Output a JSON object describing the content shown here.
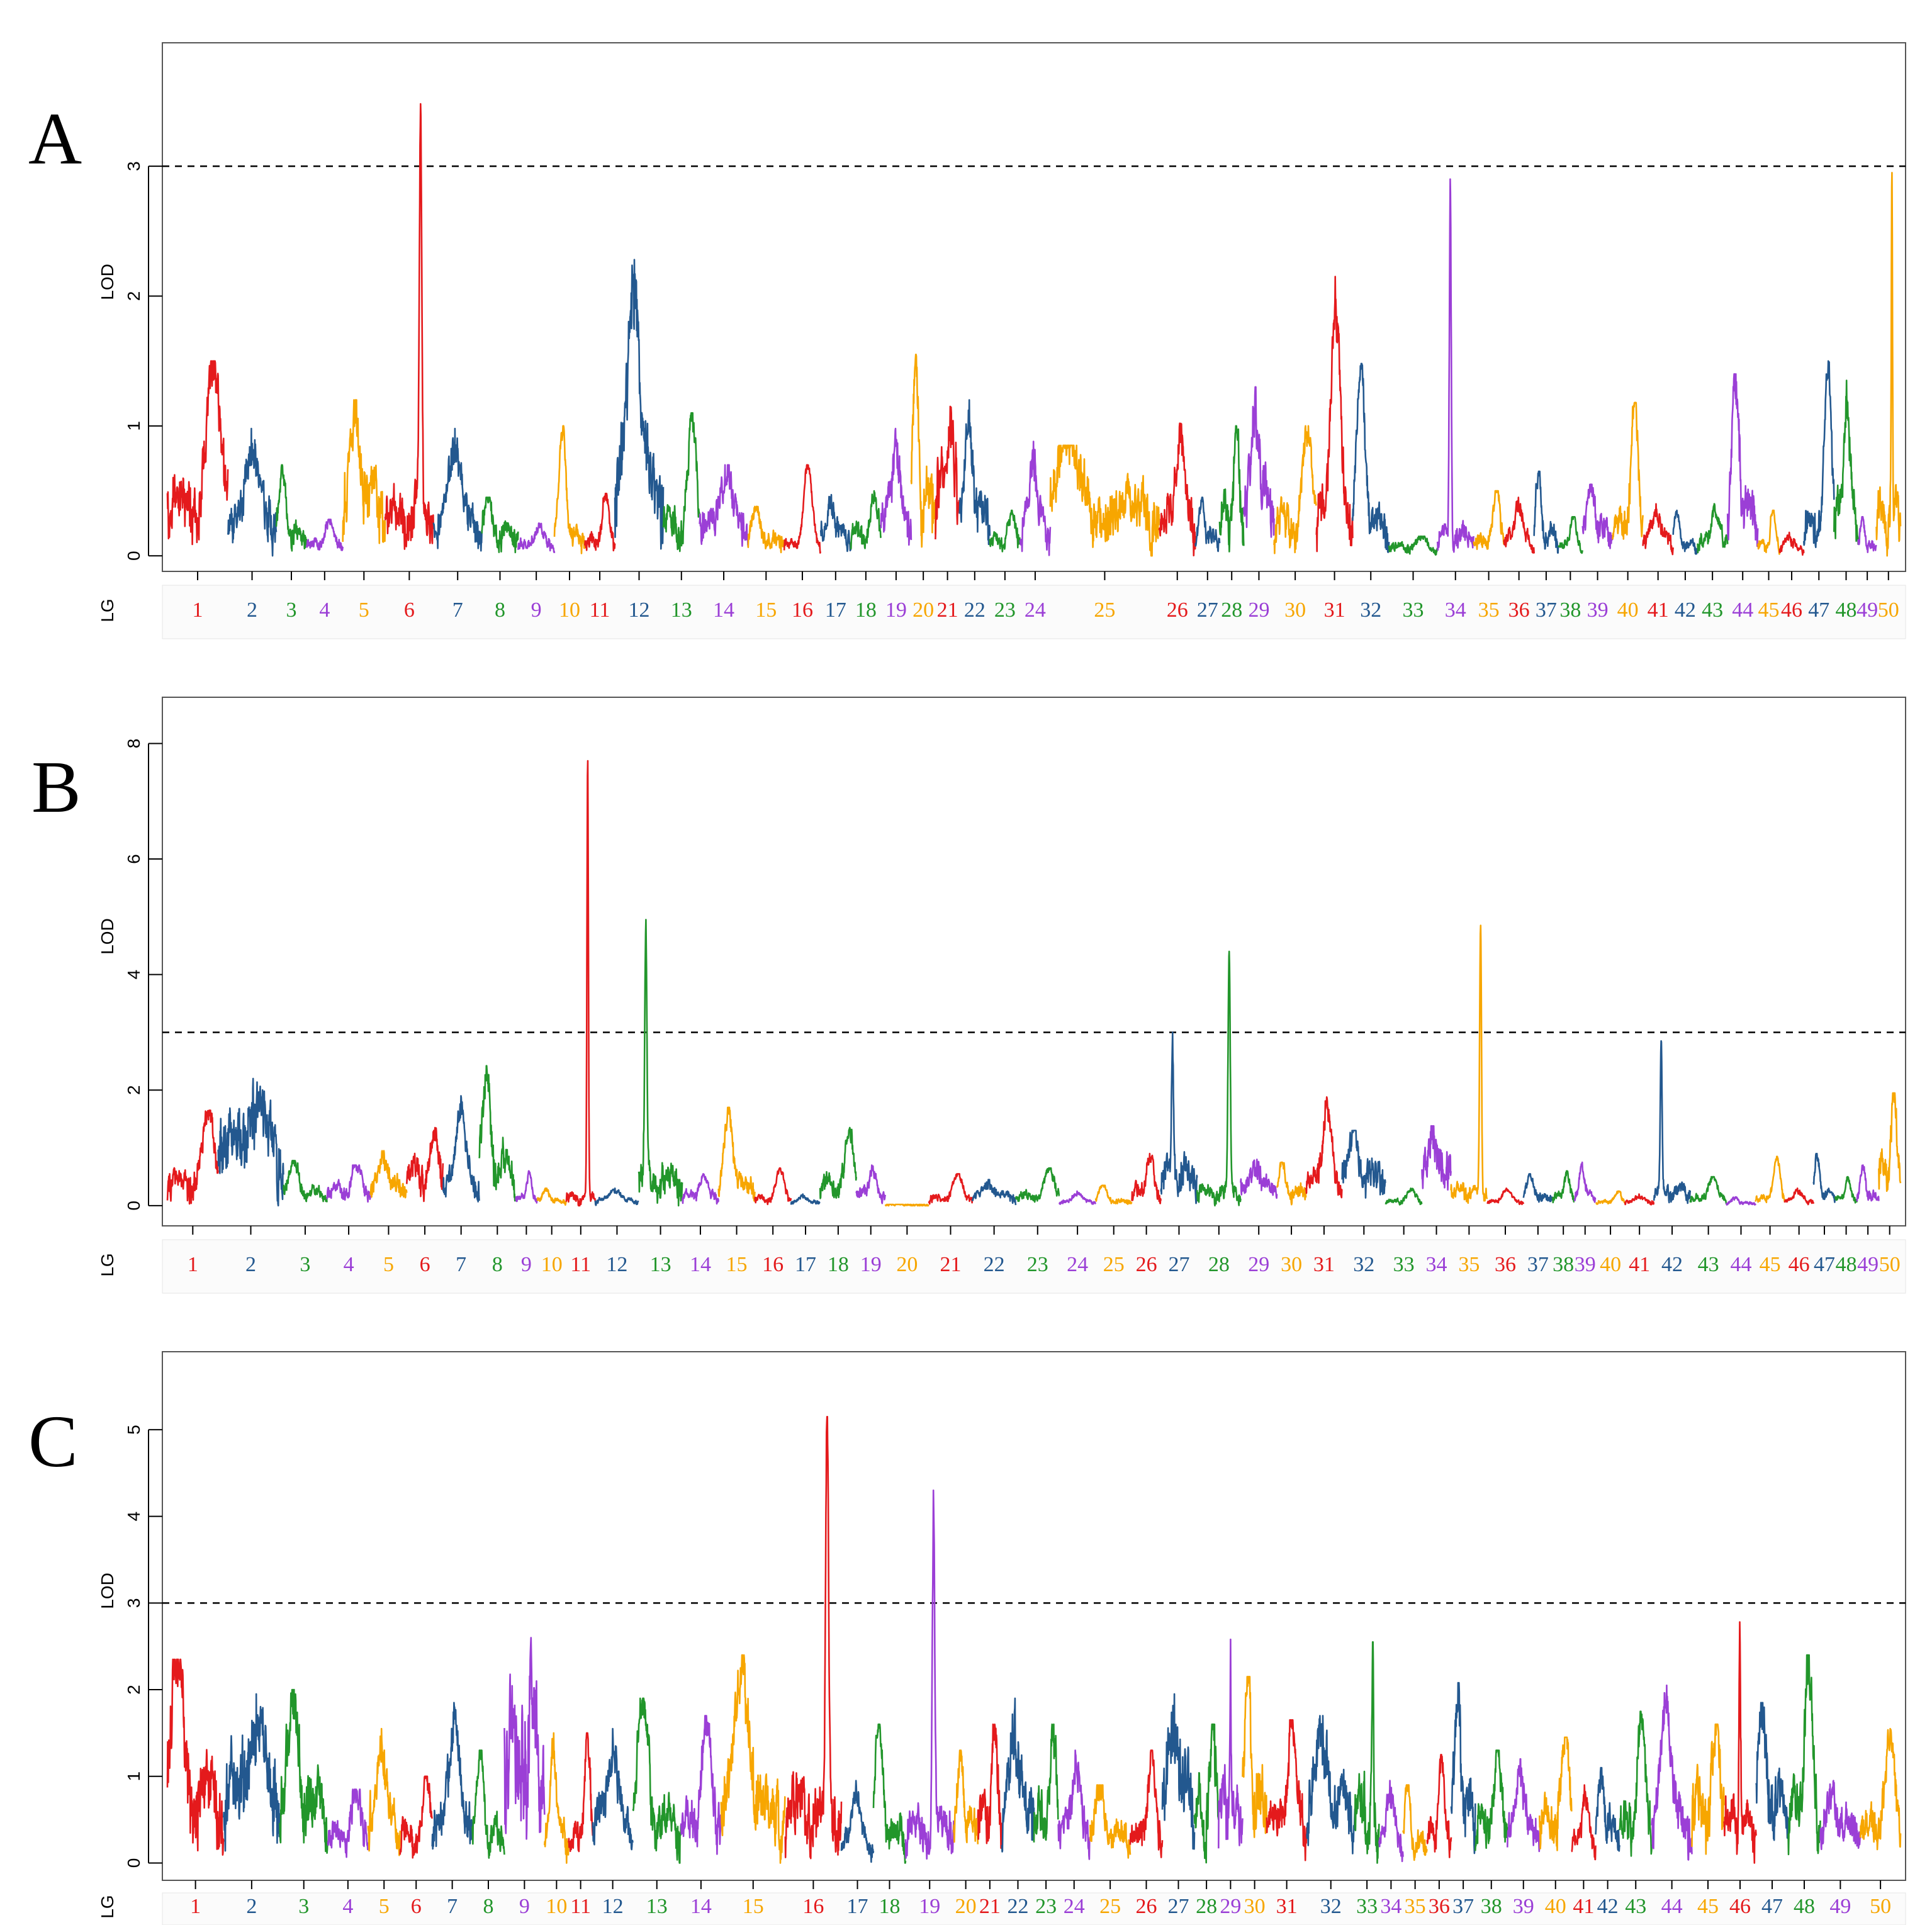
{
  "colors": [
    "#e41a1c",
    "#23588f",
    "#22962b",
    "#9b3fd6",
    "#f7a600"
  ],
  "chart_data": [
    {
      "type": "line",
      "panel": "A",
      "ylabel": "LOD",
      "xlabel": "LG",
      "ylim": [
        -0.12,
        3.95
      ],
      "yticks": [
        0,
        1,
        2,
        3
      ],
      "threshold": 3,
      "lgs": [
        {
          "lg": "1",
          "len": 5,
          "peak": 1.5,
          "base": 0.5
        },
        {
          "lg": "2",
          "len": 4,
          "peak": 0.98,
          "base": 0.35
        },
        {
          "lg": "3",
          "len": 2.5,
          "peak": 0.7,
          "base": 0.2
        },
        {
          "lg": "4",
          "len": 3,
          "peak": 0.28,
          "base": 0.1
        },
        {
          "lg": "5",
          "len": 3.5,
          "peak": 1.2,
          "base": 0.5
        },
        {
          "lg": "6",
          "len": 4,
          "peak": 3.48,
          "base": 0.4
        },
        {
          "lg": "7",
          "len": 4,
          "peak": 0.98,
          "base": 0.3
        },
        {
          "lg": "8",
          "len": 3,
          "peak": 0.45,
          "base": 0.2
        },
        {
          "lg": "9",
          "len": 3,
          "peak": 0.25,
          "base": 0.1
        },
        {
          "lg": "10",
          "len": 2.5,
          "peak": 1.0,
          "base": 0.2
        },
        {
          "lg": "11",
          "len": 2.5,
          "peak": 0.48,
          "base": 0.15
        },
        {
          "lg": "12",
          "len": 4,
          "peak": 2.28,
          "base": 0.7
        },
        {
          "lg": "13",
          "len": 3,
          "peak": 1.1,
          "base": 0.3
        },
        {
          "lg": "14",
          "len": 4,
          "peak": 0.7,
          "base": 0.3
        },
        {
          "lg": "15",
          "len": 3,
          "peak": 0.38,
          "base": 0.15
        },
        {
          "lg": "16",
          "len": 3,
          "peak": 0.7,
          "base": 0.1
        },
        {
          "lg": "17",
          "len": 2.5,
          "peak": 0.47,
          "base": 0.2
        },
        {
          "lg": "18",
          "len": 2.5,
          "peak": 0.5,
          "base": 0.2
        },
        {
          "lg": "19",
          "len": 2.5,
          "peak": 0.98,
          "base": 0.35
        },
        {
          "lg": "20",
          "len": 2,
          "peak": 1.55,
          "base": 0.5
        },
        {
          "lg": "21",
          "len": 2,
          "peak": 1.15,
          "base": 0.6
        },
        {
          "lg": "22",
          "len": 2.5,
          "peak": 1.2,
          "base": 0.4
        },
        {
          "lg": "23",
          "len": 2.5,
          "peak": 0.35,
          "base": 0.15
        },
        {
          "lg": "24",
          "len": 2.5,
          "peak": 0.88,
          "base": 0.3
        },
        {
          "lg": "25",
          "len": 9,
          "peak": 0.85,
          "base": 0.45
        },
        {
          "lg": "26",
          "len": 3,
          "peak": 1.02,
          "base": 0.35
        },
        {
          "lg": "27",
          "len": 2,
          "peak": 0.45,
          "base": 0.15
        },
        {
          "lg": "28",
          "len": 2,
          "peak": 1.0,
          "base": 0.4
        },
        {
          "lg": "29",
          "len": 2.5,
          "peak": 1.3,
          "base": 0.5
        },
        {
          "lg": "30",
          "len": 3.5,
          "peak": 1.0,
          "base": 0.3
        },
        {
          "lg": "31",
          "len": 3,
          "peak": 2.15,
          "base": 0.45
        },
        {
          "lg": "32",
          "len": 3,
          "peak": 1.48,
          "base": 0.3
        },
        {
          "lg": "33",
          "len": 4,
          "peak": 0.15,
          "base": 0.08
        },
        {
          "lg": "34",
          "len": 3,
          "peak": 2.9,
          "base": 0.2
        },
        {
          "lg": "35",
          "len": 2.5,
          "peak": 0.5,
          "base": 0.15
        },
        {
          "lg": "36",
          "len": 2.5,
          "peak": 0.45,
          "base": 0.15
        },
        {
          "lg": "37",
          "len": 2,
          "peak": 0.65,
          "base": 0.2
        },
        {
          "lg": "38",
          "len": 2,
          "peak": 0.3,
          "base": 0.1
        },
        {
          "lg": "39",
          "len": 2.5,
          "peak": 0.55,
          "base": 0.25
        },
        {
          "lg": "40",
          "len": 2.5,
          "peak": 1.18,
          "base": 0.3
        },
        {
          "lg": "41",
          "len": 2.5,
          "peak": 0.4,
          "base": 0.15
        },
        {
          "lg": "42",
          "len": 2,
          "peak": 0.35,
          "base": 0.1
        },
        {
          "lg": "43",
          "len": 2.5,
          "peak": 0.4,
          "base": 0.15
        },
        {
          "lg": "44",
          "len": 2.5,
          "peak": 1.4,
          "base": 0.4
        },
        {
          "lg": "45",
          "len": 1.8,
          "peak": 0.35,
          "base": 0.1
        },
        {
          "lg": "46",
          "len": 2,
          "peak": 0.18,
          "base": 0.08
        },
        {
          "lg": "47",
          "len": 2.5,
          "peak": 1.5,
          "base": 0.3
        },
        {
          "lg": "48",
          "len": 2,
          "peak": 1.35,
          "base": 0.4
        },
        {
          "lg": "49",
          "len": 1.5,
          "peak": 0.3,
          "base": 0.1
        },
        {
          "lg": "50",
          "len": 2,
          "peak": 2.95,
          "base": 0.4
        }
      ]
    },
    {
      "type": "line",
      "panel": "B",
      "ylabel": "LOD",
      "xlabel": "LG",
      "ylim": [
        -0.35,
        8.8
      ],
      "yticks": [
        0,
        2,
        4,
        6,
        8
      ],
      "threshold": 3,
      "lgs": [
        {
          "lg": "1",
          "len": 3.5,
          "peak": 1.65,
          "base": 0.5
        },
        {
          "lg": "2",
          "len": 4.5,
          "peak": 2.2,
          "base": 1.3
        },
        {
          "lg": "3",
          "len": 3,
          "peak": 0.78,
          "base": 0.25
        },
        {
          "lg": "4",
          "len": 3,
          "peak": 0.7,
          "base": 0.3
        },
        {
          "lg": "5",
          "len": 2.5,
          "peak": 0.95,
          "base": 0.4
        },
        {
          "lg": "6",
          "len": 2.5,
          "peak": 1.35,
          "base": 0.7
        },
        {
          "lg": "7",
          "len": 2.5,
          "peak": 1.9,
          "base": 0.5
        },
        {
          "lg": "8",
          "len": 2.5,
          "peak": 2.42,
          "base": 0.8
        },
        {
          "lg": "9",
          "len": 1.5,
          "peak": 0.6,
          "base": 0.15
        },
        {
          "lg": "10",
          "len": 2,
          "peak": 0.3,
          "base": 0.1
        },
        {
          "lg": "11",
          "len": 2,
          "peak": 7.7,
          "base": 0.2
        },
        {
          "lg": "12",
          "len": 3,
          "peak": 0.3,
          "base": 0.1
        },
        {
          "lg": "13",
          "len": 3,
          "peak": 4.95,
          "base": 0.6
        },
        {
          "lg": "14",
          "len": 2.5,
          "peak": 0.55,
          "base": 0.2
        },
        {
          "lg": "15",
          "len": 2.5,
          "peak": 1.7,
          "base": 0.4
        },
        {
          "lg": "16",
          "len": 2.5,
          "peak": 0.65,
          "base": 0.15
        },
        {
          "lg": "17",
          "len": 2,
          "peak": 0.2,
          "base": 0.08
        },
        {
          "lg": "18",
          "len": 2.5,
          "peak": 1.35,
          "base": 0.4
        },
        {
          "lg": "19",
          "len": 2,
          "peak": 0.7,
          "base": 0.25
        },
        {
          "lg": "20",
          "len": 3,
          "peak": 0.02,
          "base": 0.01
        },
        {
          "lg": "21",
          "len": 3,
          "peak": 0.55,
          "base": 0.15
        },
        {
          "lg": "22",
          "len": 3,
          "peak": 0.45,
          "base": 0.2
        },
        {
          "lg": "23",
          "len": 3,
          "peak": 0.65,
          "base": 0.2
        },
        {
          "lg": "24",
          "len": 2.5,
          "peak": 0.25,
          "base": 0.08
        },
        {
          "lg": "25",
          "len": 2.5,
          "peak": 0.35,
          "base": 0.1
        },
        {
          "lg": "26",
          "len": 2,
          "peak": 0.9,
          "base": 0.3
        },
        {
          "lg": "27",
          "len": 2.5,
          "peak": 3.0,
          "base": 0.7
        },
        {
          "lg": "28",
          "len": 3,
          "peak": 4.4,
          "base": 0.3
        },
        {
          "lg": "29",
          "len": 2.5,
          "peak": 0.8,
          "base": 0.4
        },
        {
          "lg": "30",
          "len": 2,
          "peak": 0.75,
          "base": 0.3
        },
        {
          "lg": "31",
          "len": 2.5,
          "peak": 1.88,
          "base": 0.5
        },
        {
          "lg": "32",
          "len": 3,
          "peak": 1.3,
          "base": 0.6
        },
        {
          "lg": "33",
          "len": 2.5,
          "peak": 0.3,
          "base": 0.1
        },
        {
          "lg": "34",
          "len": 2,
          "peak": 1.38,
          "base": 0.8
        },
        {
          "lg": "35",
          "len": 2.5,
          "peak": 4.85,
          "base": 0.3
        },
        {
          "lg": "36",
          "len": 2.5,
          "peak": 0.3,
          "base": 0.08
        },
        {
          "lg": "37",
          "len": 2,
          "peak": 0.55,
          "base": 0.2
        },
        {
          "lg": "38",
          "len": 1.5,
          "peak": 0.6,
          "base": 0.2
        },
        {
          "lg": "39",
          "len": 1.5,
          "peak": 0.75,
          "base": 0.2
        },
        {
          "lg": "40",
          "len": 2,
          "peak": 0.25,
          "base": 0.08
        },
        {
          "lg": "41",
          "len": 2,
          "peak": 0.2,
          "base": 0.08
        },
        {
          "lg": "42",
          "len": 2.5,
          "peak": 2.85,
          "base": 0.3
        },
        {
          "lg": "43",
          "len": 2.5,
          "peak": 0.5,
          "base": 0.15
        },
        {
          "lg": "44",
          "len": 2,
          "peak": 0.15,
          "base": 0.05
        },
        {
          "lg": "45",
          "len": 2,
          "peak": 0.85,
          "base": 0.15
        },
        {
          "lg": "46",
          "len": 2,
          "peak": 0.3,
          "base": 0.1
        },
        {
          "lg": "47",
          "len": 1.5,
          "peak": 0.9,
          "base": 0.25
        },
        {
          "lg": "48",
          "len": 1.5,
          "peak": 0.5,
          "base": 0.15
        },
        {
          "lg": "49",
          "len": 1.5,
          "peak": 0.7,
          "base": 0.2
        },
        {
          "lg": "50",
          "len": 1.5,
          "peak": 1.95,
          "base": 0.8
        }
      ]
    },
    {
      "type": "line",
      "panel": "C",
      "ylabel": "LOD",
      "xlabel": "LG",
      "ylim": [
        -0.2,
        5.9
      ],
      "yticks": [
        0,
        1,
        2,
        3,
        4,
        5
      ],
      "threshold": 3,
      "lgs": [
        {
          "lg": "1",
          "len": 3.5,
          "peak": 2.35,
          "base": 1.0
        },
        {
          "lg": "2",
          "len": 3.5,
          "peak": 1.95,
          "base": 1.0
        },
        {
          "lg": "3",
          "len": 3,
          "peak": 2.0,
          "base": 0.8
        },
        {
          "lg": "4",
          "len": 2.5,
          "peak": 0.85,
          "base": 0.4
        },
        {
          "lg": "5",
          "len": 2,
          "peak": 1.55,
          "base": 0.6
        },
        {
          "lg": "6",
          "len": 2,
          "peak": 1.0,
          "base": 0.4
        },
        {
          "lg": "7",
          "len": 2.5,
          "peak": 1.85,
          "base": 0.6
        },
        {
          "lg": "8",
          "len": 2,
          "peak": 1.3,
          "base": 0.4
        },
        {
          "lg": "9",
          "len": 2.5,
          "peak": 2.6,
          "base": 1.6
        },
        {
          "lg": "10",
          "len": 1.5,
          "peak": 1.5,
          "base": 0.4
        },
        {
          "lg": "11",
          "len": 1.5,
          "peak": 1.5,
          "base": 0.4
        },
        {
          "lg": "12",
          "len": 2.5,
          "peak": 1.55,
          "base": 0.6
        },
        {
          "lg": "13",
          "len": 3,
          "peak": 1.9,
          "base": 0.6
        },
        {
          "lg": "14",
          "len": 2.5,
          "peak": 1.7,
          "base": 0.6
        },
        {
          "lg": "15",
          "len": 4,
          "peak": 2.4,
          "base": 0.8
        },
        {
          "lg": "16",
          "len": 3.5,
          "peak": 5.15,
          "base": 0.8
        },
        {
          "lg": "17",
          "len": 2,
          "peak": 0.95,
          "base": 0.3
        },
        {
          "lg": "18",
          "len": 2,
          "peak": 1.6,
          "base": 0.5
        },
        {
          "lg": "19",
          "len": 3,
          "peak": 4.3,
          "base": 0.5
        },
        {
          "lg": "20",
          "len": 1.5,
          "peak": 1.3,
          "base": 0.5
        },
        {
          "lg": "21",
          "len": 1.5,
          "peak": 1.6,
          "base": 0.7
        },
        {
          "lg": "22",
          "len": 2,
          "peak": 1.9,
          "base": 0.8
        },
        {
          "lg": "23",
          "len": 1.5,
          "peak": 1.6,
          "base": 0.7
        },
        {
          "lg": "24",
          "len": 2,
          "peak": 1.3,
          "base": 0.5
        },
        {
          "lg": "25",
          "len": 2.5,
          "peak": 0.9,
          "base": 0.4
        },
        {
          "lg": "26",
          "len": 2,
          "peak": 1.3,
          "base": 0.4
        },
        {
          "lg": "27",
          "len": 2,
          "peak": 1.95,
          "base": 1.0
        },
        {
          "lg": "28",
          "len": 1.5,
          "peak": 1.6,
          "base": 0.8
        },
        {
          "lg": "29",
          "len": 1.5,
          "peak": 2.58,
          "base": 0.8
        },
        {
          "lg": "30",
          "len": 1.5,
          "peak": 2.15,
          "base": 1.0
        },
        {
          "lg": "31",
          "len": 2.5,
          "peak": 1.65,
          "base": 0.6
        },
        {
          "lg": "32",
          "len": 3,
          "peak": 1.7,
          "base": 0.8
        },
        {
          "lg": "33",
          "len": 1.5,
          "peak": 2.55,
          "base": 0.8
        },
        {
          "lg": "34",
          "len": 1.5,
          "peak": 0.95,
          "base": 0.4
        },
        {
          "lg": "35",
          "len": 1.5,
          "peak": 0.9,
          "base": 0.3
        },
        {
          "lg": "36",
          "len": 1.5,
          "peak": 1.25,
          "base": 0.4
        },
        {
          "lg": "37",
          "len": 1.5,
          "peak": 2.08,
          "base": 0.8
        },
        {
          "lg": "38",
          "len": 2,
          "peak": 1.3,
          "base": 0.5
        },
        {
          "lg": "39",
          "len": 2,
          "peak": 1.2,
          "base": 0.5
        },
        {
          "lg": "40",
          "len": 2,
          "peak": 1.45,
          "base": 0.6
        },
        {
          "lg": "41",
          "len": 1.5,
          "peak": 0.9,
          "base": 0.3
        },
        {
          "lg": "42",
          "len": 1.5,
          "peak": 1.1,
          "base": 0.5
        },
        {
          "lg": "43",
          "len": 2,
          "peak": 1.75,
          "base": 0.6
        },
        {
          "lg": "44",
          "len": 2.5,
          "peak": 2.05,
          "base": 0.6
        },
        {
          "lg": "45",
          "len": 2,
          "peak": 1.6,
          "base": 0.8
        },
        {
          "lg": "46",
          "len": 2,
          "peak": 2.78,
          "base": 0.6
        },
        {
          "lg": "47",
          "len": 2,
          "peak": 1.85,
          "base": 0.8
        },
        {
          "lg": "48",
          "len": 2,
          "peak": 2.4,
          "base": 0.8
        },
        {
          "lg": "49",
          "len": 2.5,
          "peak": 0.95,
          "base": 0.5
        },
        {
          "lg": "50",
          "len": 2.5,
          "peak": 1.55,
          "base": 0.5
        }
      ]
    }
  ]
}
